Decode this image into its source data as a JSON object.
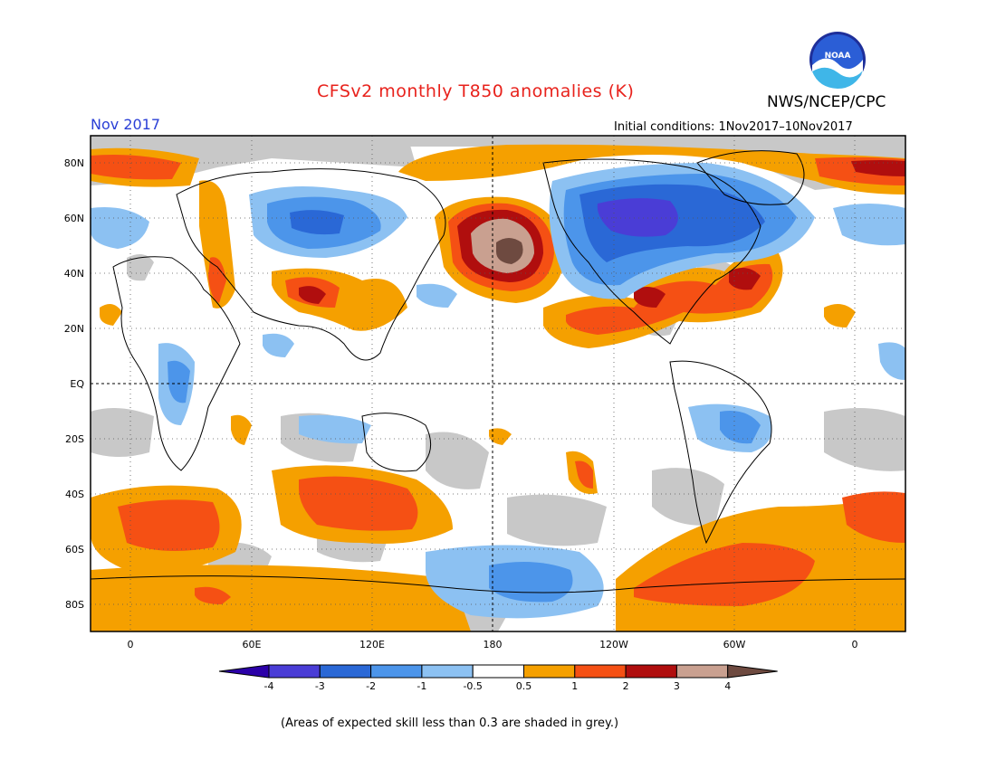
{
  "header": {
    "title": "CFSv2 monthly T850 anomalies (K)",
    "agency": "NWS/NCEP/CPC",
    "logo_text": "NOAA",
    "month": "Nov 2017",
    "initial_conditions": "Initial conditions: 1Nov2017–10Nov2017"
  },
  "map": {
    "lat_labels": [
      "80N",
      "60N",
      "40N",
      "20N",
      "EQ",
      "20S",
      "40S",
      "60S",
      "80S"
    ],
    "lon_labels": [
      "0",
      "60E",
      "120E",
      "180",
      "120W",
      "60W",
      "0"
    ],
    "skill_mask_color": "#c8c8c8"
  },
  "colorbar": {
    "labels": [
      "-4",
      "-3",
      "-2",
      "-1",
      "-0.5",
      "0.5",
      "1",
      "2",
      "3",
      "4"
    ],
    "colors": [
      "#2b00a8",
      "#4a3dd6",
      "#2a68d6",
      "#4c95ea",
      "#8cc1f2",
      "#ffffff",
      "#f5a000",
      "#f55014",
      "#b00e0e",
      "#c9a090",
      "#6e4a40"
    ]
  },
  "footnote": "(Areas of expected skill less than 0.3 are shaded in grey.)"
}
